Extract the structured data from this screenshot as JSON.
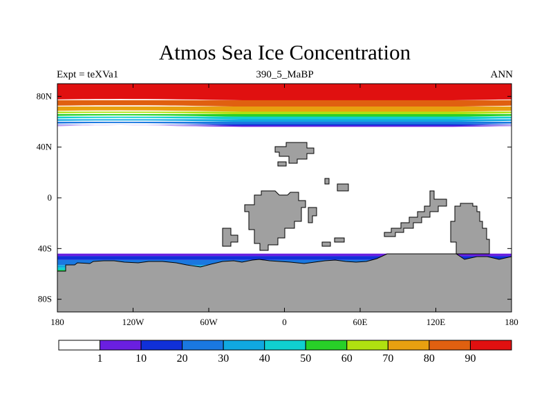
{
  "chart_data": {
    "type": "heatmap",
    "title": "Atmos Sea Ice Concentration",
    "subtitle_left": "Expt = teXVa1",
    "subtitle_center": "390_5_MaBP",
    "subtitle_right": "ANN",
    "x_ticks": [
      "180",
      "120W",
      "60W",
      "0",
      "60E",
      "120E",
      "180"
    ],
    "x_tick_values": [
      -180,
      -120,
      -60,
      0,
      60,
      120,
      180
    ],
    "y_ticks": [
      "80N",
      "40N",
      "0",
      "40S",
      "80S"
    ],
    "y_tick_values": [
      80,
      40,
      0,
      -40,
      -80
    ],
    "xlim": [
      -180,
      180
    ],
    "ylim": [
      -90,
      90
    ],
    "colorbar": {
      "labels": [
        "1",
        "10",
        "20",
        "30",
        "40",
        "50",
        "60",
        "70",
        "80",
        "90"
      ],
      "colors": [
        "#ffffff",
        "#6a1fe0",
        "#1030d8",
        "#1a78e0",
        "#10a8e0",
        "#10d0d0",
        "#28d028",
        "#b0e010",
        "#e8a010",
        "#e06010",
        "#e01010"
      ]
    },
    "north_band_edges_lat": [
      90,
      77,
      72,
      68,
      66,
      64,
      62,
      60,
      58,
      57,
      56,
      54
    ],
    "south_band_edges_lat": [
      -44,
      -46,
      -49,
      -53,
      -55,
      -57,
      -60,
      -63,
      -66,
      -70,
      -75,
      -90
    ],
    "land_color": "#a0a0a0"
  },
  "colors": {
    "background": "#ffffff",
    "frame": "#000000"
  }
}
